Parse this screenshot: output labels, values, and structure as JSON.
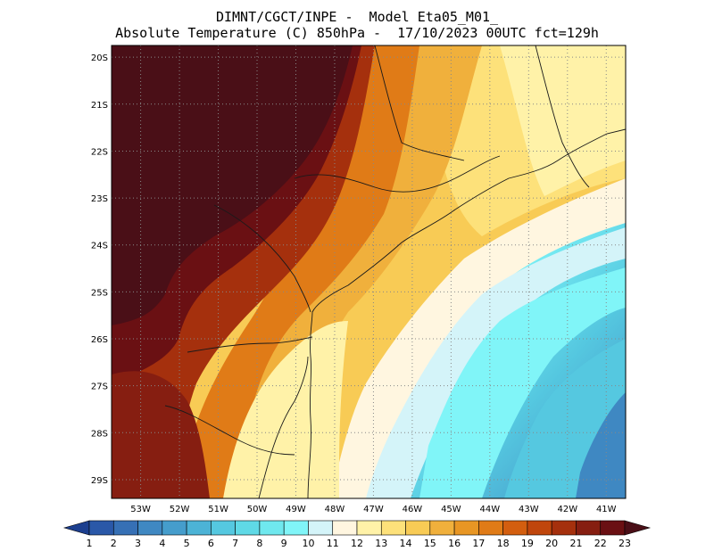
{
  "header": {
    "line1": "DIMNT/CGCT/INPE -  Model Eta05_M01_",
    "line2": "Absolute Temperature (C) 850hPa -  17/10/2023 00UTC fct=129h"
  },
  "map": {
    "lat_labels": [
      "20S",
      "21S",
      "22S",
      "23S",
      "24S",
      "25S",
      "26S",
      "27S",
      "28S",
      "29S"
    ],
    "lon_labels": [
      "53W",
      "52W",
      "51W",
      "50W",
      "49W",
      "48W",
      "47W",
      "46W",
      "45W",
      "44W",
      "43W",
      "42W",
      "41W"
    ],
    "extent": {
      "lon_west": 53.75,
      "lon_east": 40.5,
      "lat_north": 19.75,
      "lat_south": 29.4
    }
  },
  "colorbar": {
    "labels": [
      "1",
      "2",
      "3",
      "4",
      "5",
      "6",
      "7",
      "8",
      "9",
      "10",
      "11",
      "12",
      "13",
      "14",
      "15",
      "16",
      "17",
      "18",
      "19",
      "20",
      "21",
      "22",
      "23"
    ],
    "colors": [
      "#1c3f8f",
      "#2a58a8",
      "#3670b5",
      "#3f88c2",
      "#459dcc",
      "#4cb3d6",
      "#55c8e0",
      "#5fd9e6",
      "#6fe8ee",
      "#80f5f8",
      "#d4f4f9",
      "#fff6e0",
      "#fff2a8",
      "#fde17a",
      "#f8cb55",
      "#f0b03c",
      "#e89624",
      "#e07b17",
      "#d35e0f",
      "#c0460c",
      "#a5300d",
      "#861e11",
      "#6a1013",
      "#4a0f17"
    ]
  }
}
